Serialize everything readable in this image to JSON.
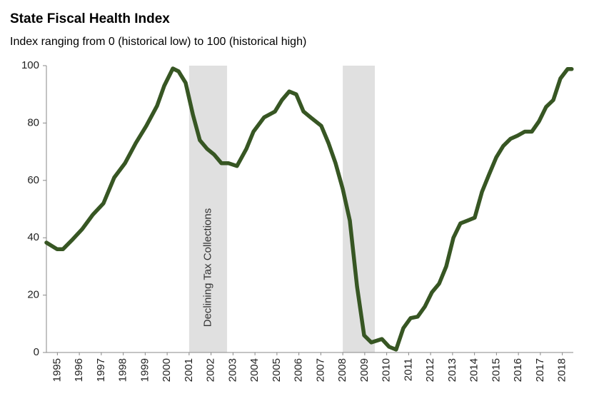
{
  "chart_data": {
    "type": "line",
    "title": "State Fiscal Health Index",
    "subtitle": "Index ranging from 0 (historical low) to 100 (historical high)",
    "x": [
      1995.0,
      1995.49,
      1995.75,
      1996.14,
      1996.63,
      1997.11,
      1997.6,
      1998.09,
      1998.58,
      1999.07,
      1999.55,
      2000.04,
      2000.37,
      2000.76,
      2001.02,
      2001.34,
      2001.67,
      2001.99,
      2002.32,
      2002.64,
      2002.97,
      2003.29,
      2003.68,
      2004.11,
      2004.43,
      2004.92,
      2005.41,
      2005.73,
      2006.06,
      2006.38,
      2006.71,
      2007.03,
      2007.52,
      2007.85,
      2008.17,
      2008.5,
      2008.82,
      2009.15,
      2009.47,
      2009.8,
      2010.28,
      2010.61,
      2010.93,
      2011.26,
      2011.59,
      2011.91,
      2012.24,
      2012.56,
      2012.89,
      2013.21,
      2013.54,
      2013.86,
      2014.19,
      2014.51,
      2014.84,
      2015.16,
      2015.49,
      2015.81,
      2016.14,
      2016.46,
      2016.79,
      2017.11,
      2017.44,
      2017.76,
      2018.09,
      2018.41,
      2018.74,
      2018.93
    ],
    "series": [
      {
        "name": "State Fiscal Health Index",
        "color": "#375623",
        "values": [
          38.3,
          36,
          36,
          39,
          43,
          48,
          52,
          61,
          66,
          73,
          79,
          86,
          93,
          99,
          98,
          94,
          83,
          74,
          71,
          69,
          66,
          66,
          65,
          71,
          77,
          82,
          84,
          88,
          91,
          90,
          84,
          82,
          79,
          73,
          66,
          57,
          46,
          23,
          6,
          3.5,
          4.7,
          2,
          1,
          8.5,
          12,
          12.5,
          16,
          21,
          24,
          30,
          40,
          45,
          46,
          47,
          56,
          62,
          68,
          72,
          74.5,
          75.6,
          77,
          77,
          80.6,
          85.6,
          88,
          95.5,
          98.8,
          98.8
        ]
      }
    ],
    "xlim": [
      1995,
      2019
    ],
    "xticks": [
      {
        "value": 1995.5,
        "label": "1995"
      },
      {
        "value": 1996.5,
        "label": "1996"
      },
      {
        "value": 1997.5,
        "label": "1997"
      },
      {
        "value": 1998.5,
        "label": "1998"
      },
      {
        "value": 1999.5,
        "label": "1999"
      },
      {
        "value": 2000.5,
        "label": "2000"
      },
      {
        "value": 2001.5,
        "label": "2001"
      },
      {
        "value": 2002.5,
        "label": "2002"
      },
      {
        "value": 2003.5,
        "label": "2003"
      },
      {
        "value": 2004.5,
        "label": "2004"
      },
      {
        "value": 2005.5,
        "label": "2005"
      },
      {
        "value": 2006.5,
        "label": "2006"
      },
      {
        "value": 2007.5,
        "label": "2007"
      },
      {
        "value": 2008.5,
        "label": "2008"
      },
      {
        "value": 2009.5,
        "label": "2009"
      },
      {
        "value": 2010.5,
        "label": "2010"
      },
      {
        "value": 2011.5,
        "label": "2011"
      },
      {
        "value": 2012.5,
        "label": "2012"
      },
      {
        "value": 2013.5,
        "label": "2013"
      },
      {
        "value": 2014.5,
        "label": "2014"
      },
      {
        "value": 2015.5,
        "label": "2015"
      },
      {
        "value": 2016.5,
        "label": "2016"
      },
      {
        "value": 2017.5,
        "label": "2017"
      },
      {
        "value": 2018.5,
        "label": "2018"
      }
    ],
    "ylim": [
      0,
      100
    ],
    "yticks": [
      0,
      20,
      40,
      60,
      80,
      100
    ],
    "grid": false,
    "shaded_regions": [
      {
        "start": 2001.5,
        "end": 2003.23,
        "color": "#e0e0e0",
        "label": "Declining Tax Collections"
      },
      {
        "start": 2008.5,
        "end": 2009.96,
        "color": "#e0e0e0"
      }
    ]
  }
}
